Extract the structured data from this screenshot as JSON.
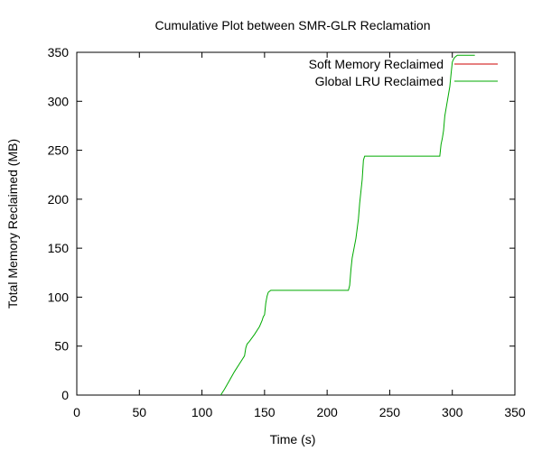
{
  "chart_data": {
    "type": "line",
    "title": "Cumulative Plot between SMR-GLR Reclamation",
    "xlabel": "Time (s)",
    "ylabel": "Total Memory Reclaimed (MB)",
    "xlim": [
      0,
      350
    ],
    "ylim": [
      0,
      350
    ],
    "xticks": [
      "0",
      "50",
      "100",
      "150",
      "200",
      "250",
      "300",
      "350"
    ],
    "yticks": [
      "0",
      "50",
      "100",
      "150",
      "200",
      "250",
      "300",
      "350"
    ],
    "grid": false,
    "legend_position": "top-right",
    "series": [
      {
        "name": "Soft Memory Reclaimed",
        "color": "#cc0000",
        "x": [],
        "y": []
      },
      {
        "name": "Global LRU Reclaimed",
        "color": "#00aa00",
        "x": [
          115,
          118,
          122,
          126,
          130,
          134,
          135,
          136,
          138,
          142,
          146,
          148,
          149,
          150,
          151,
          152,
          153,
          155,
          217,
          218,
          219,
          220,
          223,
          225,
          226,
          228,
          229,
          230,
          290,
          291,
          292,
          293,
          294,
          296,
          298,
          299,
          300,
          301,
          302,
          304,
          318
        ],
        "y": [
          0,
          6,
          15,
          24,
          32,
          40,
          48,
          52,
          55,
          62,
          70,
          76,
          80,
          82,
          94,
          101,
          105,
          107,
          107,
          112,
          128,
          140,
          160,
          180,
          196,
          220,
          240,
          244,
          244,
          256,
          262,
          270,
          285,
          300,
          315,
          328,
          340,
          343,
          345,
          347,
          347
        ]
      }
    ]
  }
}
